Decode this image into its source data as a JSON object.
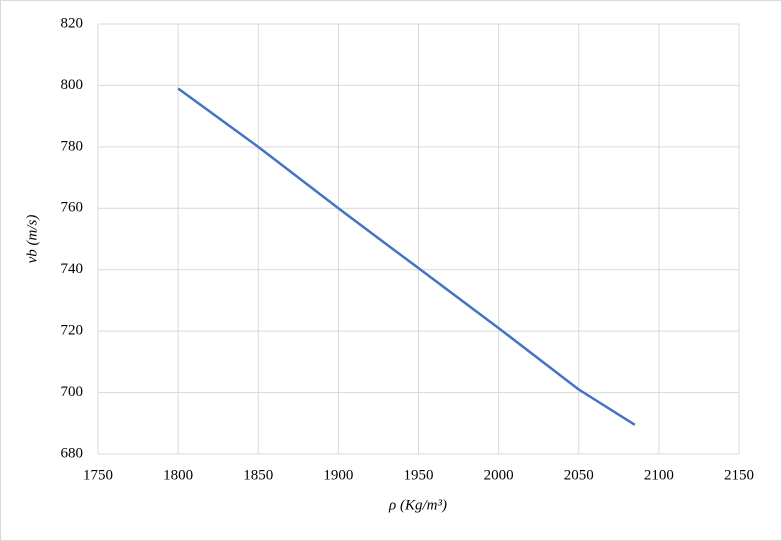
{
  "chart_data": {
    "type": "line",
    "x_label": "ρ (Kg/m³)",
    "y_label": "vb (m/s)",
    "x": [
      1800,
      1850,
      1900,
      1950,
      2000,
      2050,
      2085
    ],
    "series": [
      {
        "color": "#4472c4",
        "values": [
          799,
          780,
          760,
          740.5,
          721,
          701,
          689.5
        ]
      }
    ],
    "xlim": [
      1750,
      2150
    ],
    "xticks": [
      1750,
      1800,
      1850,
      1900,
      1950,
      2000,
      2050,
      2100,
      2150
    ],
    "ylim": [
      680,
      820
    ],
    "yticks": [
      680,
      700,
      720,
      740,
      760,
      780,
      800,
      820
    ],
    "grid": true
  }
}
